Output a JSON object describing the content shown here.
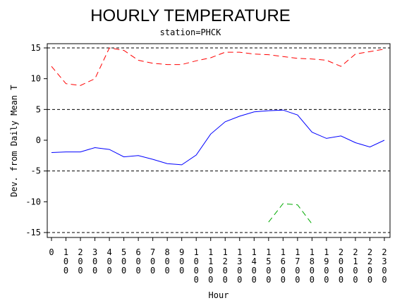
{
  "chart_data": {
    "type": "line",
    "title": "HOURLY TEMPERATURE",
    "subtitle": "station=PHCK",
    "xlabel": "Hour",
    "ylabel": "Dev. from Daily Mean T",
    "x": [
      0,
      100,
      200,
      300,
      400,
      500,
      600,
      700,
      800,
      900,
      1000,
      1100,
      1200,
      1300,
      1400,
      1500,
      1600,
      1700,
      1800,
      1900,
      2000,
      2100,
      2200,
      2300
    ],
    "x_tick_labels": [
      "0",
      "100",
      "200",
      "300",
      "400",
      "500",
      "600",
      "700",
      "800",
      "900",
      "1000",
      "1100",
      "1200",
      "1300",
      "1400",
      "1500",
      "1600",
      "1700",
      "1800",
      "1900",
      "2000",
      "2100",
      "2200",
      "2300"
    ],
    "y_ticks": [
      15,
      10,
      5,
      0,
      -5,
      -10,
      -15
    ],
    "ylim": [
      -16,
      16
    ],
    "reference_lines": [
      15,
      5,
      -5,
      -15
    ],
    "series": [
      {
        "color": "#ff0000",
        "style": "dashed",
        "values": [
          12.0,
          9.2,
          8.9,
          10.0,
          15.0,
          14.6,
          13.0,
          12.5,
          12.3,
          12.3,
          12.9,
          13.4,
          14.3,
          14.3,
          14.0,
          13.9,
          13.6,
          13.3,
          13.2,
          13.0,
          12.0,
          14.0,
          14.4,
          14.8
        ]
      },
      {
        "color": "#0000ff",
        "style": "solid",
        "values": [
          -2.0,
          -1.9,
          -1.9,
          -1.2,
          -1.5,
          -2.7,
          -2.5,
          -3.1,
          -3.8,
          -4.0,
          -2.4,
          1.0,
          3.0,
          3.9,
          4.6,
          4.8,
          4.9,
          4.1,
          1.3,
          0.3,
          0.7,
          -0.4,
          -1.1,
          0.0
        ]
      },
      {
        "color": "#00aa00",
        "style": "dashed",
        "values": [
          null,
          null,
          null,
          null,
          null,
          null,
          null,
          null,
          null,
          null,
          null,
          null,
          null,
          null,
          null,
          -13.3,
          -10.3,
          -10.5,
          -13.6,
          null,
          null,
          null,
          null,
          null
        ]
      }
    ]
  }
}
